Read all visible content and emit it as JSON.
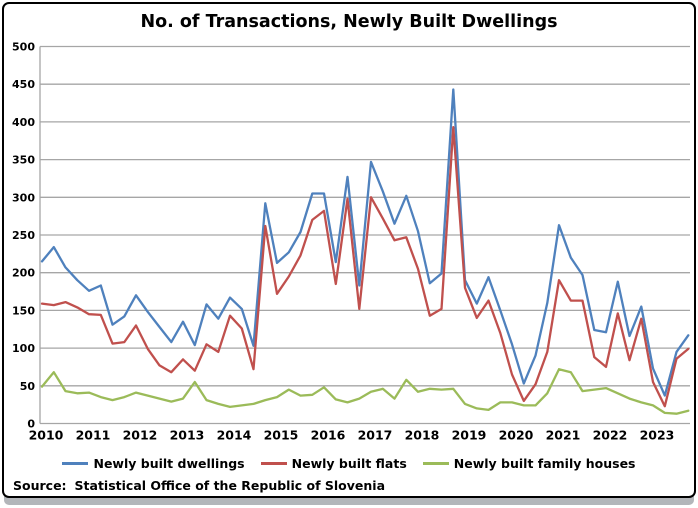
{
  "chart": {
    "footer_source_label": "Source:",
    "footer_source_text": "Statistical Office of the Republic of Slovenia"
  },
  "chart_data": {
    "type": "line",
    "title": "No. of Transactions, Newly Built Dwellings",
    "xlabel": "",
    "ylabel": "",
    "ylim": [
      0,
      500
    ],
    "y_tick_step": 50,
    "y_tick_labels": [
      "0",
      "50",
      "100",
      "150",
      "200",
      "250",
      "300",
      "350",
      "400",
      "450",
      "500"
    ],
    "x_tick_labels": [
      "2010",
      "2011",
      "2012",
      "2013",
      "2014",
      "2015",
      "2016",
      "2017",
      "2018",
      "2019",
      "2020",
      "2021",
      "2022",
      "2023"
    ],
    "grid": true,
    "legend_position": "bottom",
    "grid_color": "#a6a6a6",
    "categories": [
      "2010 Q1",
      "2010 Q2",
      "2010 Q3",
      "2010 Q4",
      "2011 Q1",
      "2011 Q2",
      "2011 Q3",
      "2011 Q4",
      "2012 Q1",
      "2012 Q2",
      "2012 Q3",
      "2012 Q4",
      "2013 Q1",
      "2013 Q2",
      "2013 Q3",
      "2013 Q4",
      "2014 Q1",
      "2014 Q2",
      "2014 Q3",
      "2014 Q4",
      "2015 Q1",
      "2015 Q2",
      "2015 Q3",
      "2015 Q4",
      "2016 Q1",
      "2016 Q2",
      "2016 Q3",
      "2016 Q4",
      "2017 Q1",
      "2017 Q2",
      "2017 Q3",
      "2017 Q4",
      "2018 Q1",
      "2018 Q2",
      "2018 Q3",
      "2018 Q4",
      "2019 Q1",
      "2019 Q2",
      "2019 Q3",
      "2019 Q4",
      "2020 Q1",
      "2020 Q2",
      "2020 Q3",
      "2020 Q4",
      "2021 Q1",
      "2021 Q2",
      "2021 Q3",
      "2021 Q4",
      "2022 Q1",
      "2022 Q2",
      "2022 Q3",
      "2022 Q4",
      "2023 Q1",
      "2023 Q2",
      "2023 Q3",
      "2023 Q4"
    ],
    "series": [
      {
        "name": "Newly built dwellings",
        "color": "#4F81BD",
        "values": [
          215,
          234,
          207,
          190,
          176,
          183,
          131,
          142,
          170,
          148,
          128,
          108,
          135,
          104,
          158,
          139,
          167,
          152,
          103,
          292,
          213,
          227,
          254,
          305,
          305,
          214,
          327,
          183,
          347,
          308,
          265,
          302,
          255,
          186,
          199,
          443,
          190,
          159,
          194,
          150,
          105,
          53,
          90,
          160,
          263,
          220,
          197,
          124,
          121,
          188,
          116,
          155,
          73,
          37,
          95,
          117
        ]
      },
      {
        "name": "Newly built flats",
        "color": "#C0504D",
        "values": [
          159,
          157,
          161,
          154,
          145,
          144,
          106,
          108,
          130,
          99,
          77,
          68,
          85,
          70,
          105,
          95,
          143,
          126,
          72,
          262,
          172,
          195,
          223,
          270,
          282,
          185,
          298,
          152,
          300,
          272,
          243,
          247,
          205,
          143,
          152,
          393,
          180,
          140,
          163,
          120,
          65,
          30,
          52,
          95,
          190,
          163,
          163,
          88,
          75,
          146,
          84,
          139,
          55,
          23,
          86,
          99
        ]
      },
      {
        "name": "Newly built family houses",
        "color": "#9BBB59",
        "values": [
          49,
          68,
          43,
          40,
          41,
          35,
          31,
          35,
          41,
          37,
          33,
          29,
          33,
          55,
          31,
          26,
          22,
          24,
          26,
          31,
          35,
          45,
          37,
          38,
          48,
          32,
          28,
          33,
          42,
          46,
          33,
          58,
          42,
          46,
          45,
          46,
          26,
          20,
          18,
          28,
          28,
          24,
          24,
          40,
          72,
          68,
          43,
          45,
          47,
          40,
          33,
          28,
          24,
          14,
          13,
          17
        ]
      }
    ]
  }
}
